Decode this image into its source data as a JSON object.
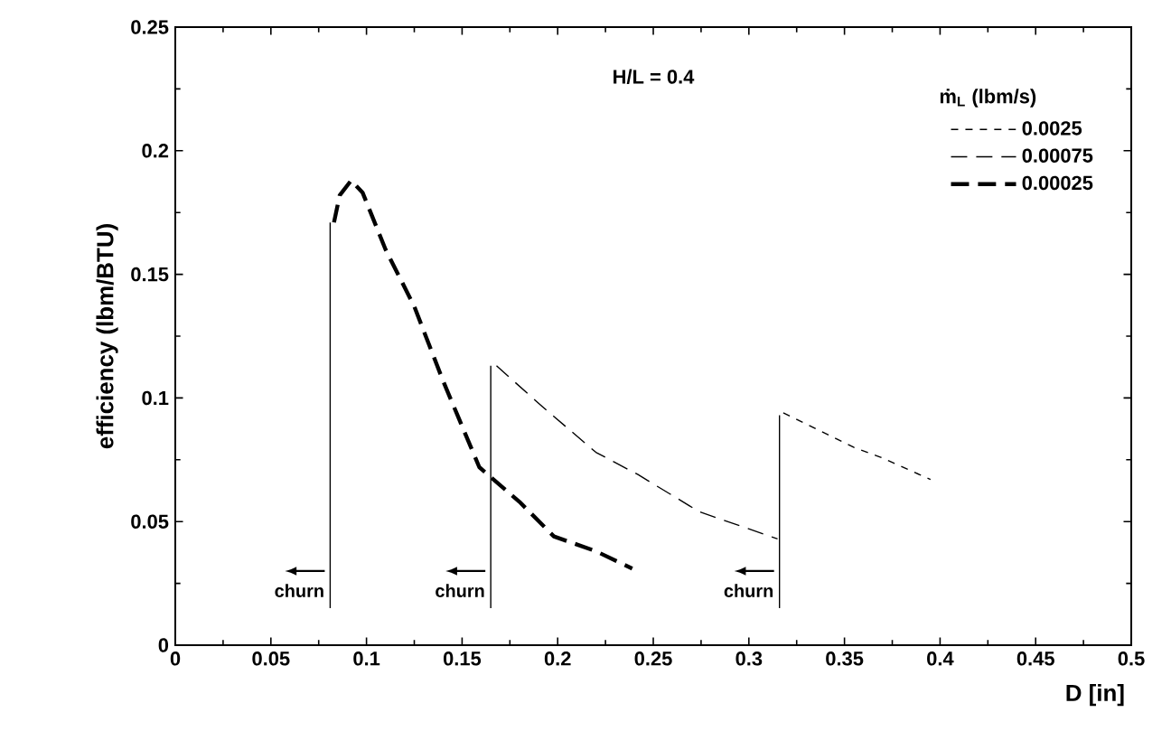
{
  "chart_data": {
    "type": "line",
    "xlabel": "D  [in]",
    "ylabel": "efficiency (lbm/BTU)",
    "legend_title": "ṁ$_{L}$ (lbm/s)",
    "xlim": [
      0,
      0.5
    ],
    "ylim": [
      0,
      0.25
    ],
    "xticks": [
      0,
      0.05,
      0.1,
      0.15,
      0.2,
      0.25,
      0.3,
      0.35,
      0.4,
      0.45,
      0.5
    ],
    "yticks": [
      0,
      0.05,
      0.1,
      0.15,
      0.2,
      0.25
    ],
    "grid": false,
    "legend": "top right",
    "marker": "none",
    "series": [
      {
        "name": "0.0025",
        "color": "#000000",
        "line_style": "dashed",
        "x": [
          0.318,
          0.355,
          0.369,
          0.395
        ],
        "values": [
          0.094,
          0.08,
          0.076,
          0.067
        ]
      },
      {
        "name": "0.00075",
        "color": "#000000",
        "line_style": "dashed",
        "x": [
          0.168,
          0.192,
          0.22,
          0.242,
          0.274,
          0.315
        ],
        "values": [
          0.113,
          0.0965,
          0.078,
          0.069,
          0.054,
          0.043
        ]
      },
      {
        "name": "0.00025",
        "color": "#000000",
        "line_style": "dashed",
        "x": [
          0.083,
          0.086,
          0.092,
          0.098,
          0.11,
          0.125,
          0.14,
          0.159,
          0.18,
          0.198,
          0.22,
          0.239
        ],
        "values": [
          0.171,
          0.182,
          0.188,
          0.183,
          0.16,
          0.137,
          0.107,
          0.072,
          0.058,
          0.044,
          0.038,
          0.031
        ]
      },
      {
        "color": "#000000",
        "line_style": "solid",
        "x": [
          0.081,
          0.081
        ],
        "values": [
          0.015,
          0.171
        ]
      },
      {
        "color": "#000000",
        "line_style": "solid",
        "x": [
          0.165,
          0.165
        ],
        "values": [
          0.015,
          0.113
        ]
      },
      {
        "color": "#000000",
        "line_style": "solid",
        "x": [
          0.316,
          0.316
        ],
        "values": [
          0.015,
          0.093
        ]
      }
    ],
    "annotations": [
      "H/L = 0.4",
      {
        "text": "churn",
        "x": 0.081,
        "y": 0.03
      },
      {
        "text": "churn",
        "x": 0.165,
        "y": 0.03
      },
      {
        "text": "churn",
        "x": 0.316,
        "y": 0.03
      }
    ]
  }
}
